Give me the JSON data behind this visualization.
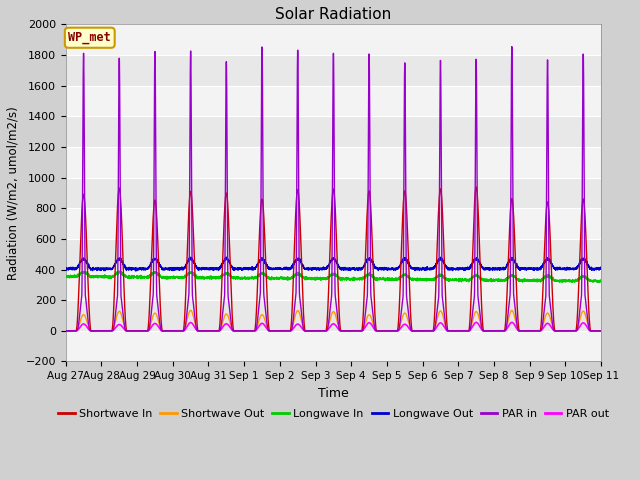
{
  "title": "Solar Radiation",
  "xlabel": "Time",
  "ylabel": "Radiation (W/m2, umol/m2/s)",
  "ylim": [
    -200,
    2000
  ],
  "yticks": [
    -200,
    0,
    200,
    400,
    600,
    800,
    1000,
    1200,
    1400,
    1600,
    1800,
    2000
  ],
  "num_days": 15,
  "x_tick_labels": [
    "Aug 27",
    "Aug 28",
    "Aug 29",
    "Aug 30",
    "Aug 31",
    "Sep 1",
    "Sep 2",
    "Sep 3",
    "Sep 4",
    "Sep 5",
    "Sep 6",
    "Sep 7",
    "Sep 8",
    "Sep 9",
    "Sep 10",
    "Sep 11"
  ],
  "colors": {
    "shortwave_in": "#cc0000",
    "shortwave_out": "#ff9900",
    "longwave_in": "#00cc00",
    "longwave_out": "#0000cc",
    "par_in": "#9900cc",
    "par_out": "#ff00ff"
  },
  "legend_labels": [
    "Shortwave In",
    "Shortwave Out",
    "Longwave In",
    "Longwave Out",
    "PAR in",
    "PAR out"
  ],
  "annotation_text": "WP_met",
  "annotation_color": "#880000",
  "annotation_bg": "#ffffcc",
  "fig_facecolor": "#d0d0d0",
  "ax_facecolor": "#e8e8e8",
  "stripe_color": "#d8d8d8",
  "grid_color": "#ffffff"
}
